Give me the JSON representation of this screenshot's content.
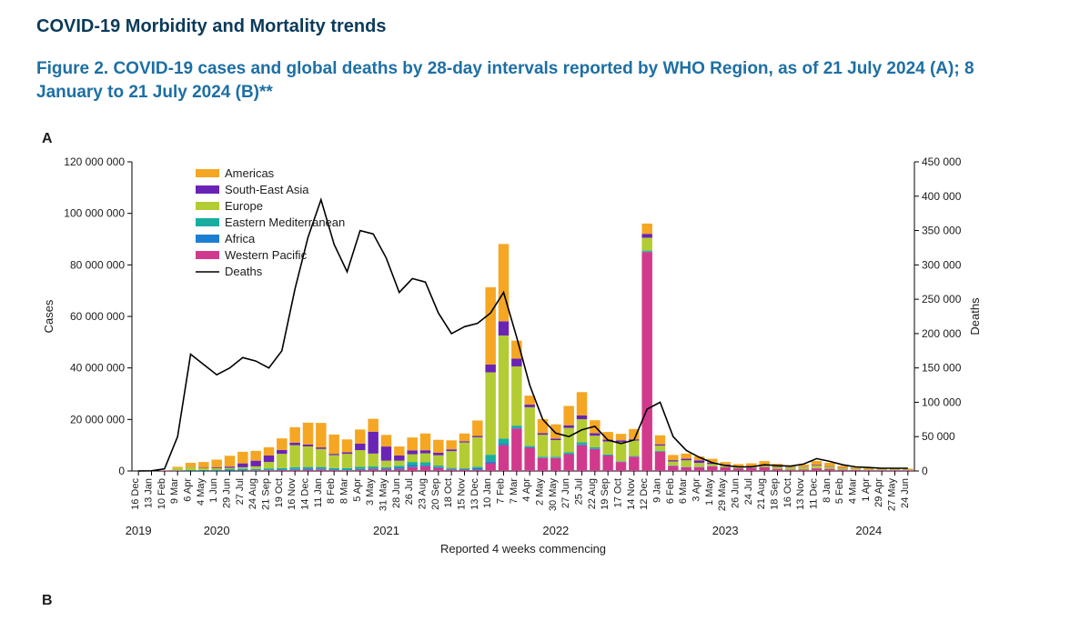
{
  "titles": {
    "main": "COVID-19 Morbidity and Mortality trends",
    "figure": "Figure 2. COVID-19 cases and global deaths by 28-day intervals reported by WHO Region, as of 21 July 2024 (A); 8 January to 21 July 2024 (B)**",
    "panelA": "A",
    "panelB": "B",
    "xaxis": "Reported 4 weeks commencing",
    "yleft": "Cases",
    "yright": "Deaths"
  },
  "colors": {
    "americas": "#f5a623",
    "sea": "#6a24b5",
    "europe": "#b3cc33",
    "emro": "#17aea0",
    "africa": "#1b7fd1",
    "wpro": "#d13a8c",
    "deaths": "#000000",
    "text": "#1c1c1c",
    "title": "#0b3a5b",
    "subtitle": "#1d6fa5",
    "background": "#ffffff",
    "axis": "#000000"
  },
  "legend": {
    "order": [
      "americas",
      "sea",
      "europe",
      "emro",
      "africa",
      "wpro",
      "deaths"
    ],
    "labels": {
      "americas": "Americas",
      "sea": "South-East Asia",
      "europe": "Europe",
      "emro": "Eastern Mediterranean",
      "africa": "Africa",
      "wpro": "Western Pacific",
      "deaths": "Deaths"
    }
  },
  "chart": {
    "type": "stacked-bar-with-line-dual-axis",
    "yleft": {
      "min": 0,
      "max": 120000000,
      "step": 20000000,
      "ticks": [
        "0",
        "20 000 000",
        "40 000 000",
        "60 000 000",
        "80 000 000",
        "100 000 000",
        "120 000 000"
      ]
    },
    "yright": {
      "min": 0,
      "max": 450000,
      "step": 50000,
      "ticks": [
        "0",
        "50 000",
        "100 000",
        "150 000",
        "200 000",
        "250 000",
        "300 000",
        "350 000",
        "400 000",
        "450 000"
      ]
    },
    "bar_gap_ratio": 0.2,
    "year_marks": [
      {
        "label": "2019",
        "at": 0
      },
      {
        "label": "2020",
        "at": 6
      },
      {
        "label": "2021",
        "at": 19
      },
      {
        "label": "2022",
        "at": 32
      },
      {
        "label": "2023",
        "at": 45
      },
      {
        "label": "2024",
        "at": 56
      }
    ],
    "xlabels": [
      "16 Dec",
      "13 Jan",
      "10 Feb",
      "9 Mar",
      "6 Apr",
      "4 May",
      "1 Jun",
      "29 Jun",
      "27 Jul",
      "24 Aug",
      "21 Sep",
      "19 Oct",
      "16 Nov",
      "14 Dec",
      "11 Jan",
      "8 Feb",
      "8 Mar",
      "5 Apr",
      "3 May",
      "31 May",
      "28 Jun",
      "26 Jul",
      "23 Aug",
      "20 Sep",
      "18 Oct",
      "15 Nov",
      "13 Dec",
      "10 Jan",
      "7 Feb",
      "7 Mar",
      "4 Apr",
      "2 May",
      "30 May",
      "27 Jun",
      "25 Jul",
      "22 Aug",
      "19 Sep",
      "17 Oct",
      "14 Nov",
      "12 Dec",
      "9 Jan",
      "6 Feb",
      "6 Mar",
      "3 Apr",
      "1 May",
      "29 May",
      "26 Jun",
      "24 Jul",
      "21 Aug",
      "18 Sep",
      "16 Oct",
      "13 Nov",
      "11 Dec",
      "8 Jan",
      "5 Feb",
      "4 Mar",
      "1 Apr",
      "29 Apr",
      "27 May",
      "24 Jun"
    ],
    "periods": [
      {
        "b": {
          "africa": 0,
          "emro": 0,
          "europe": 0,
          "sea": 0,
          "americas": 0,
          "wpro": 0
        },
        "d": 100
      },
      {
        "b": {
          "africa": 0,
          "emro": 0,
          "europe": 0,
          "sea": 0,
          "americas": 0,
          "wpro": 0.03
        },
        "d": 200
      },
      {
        "b": {
          "africa": 0,
          "emro": 0.02,
          "europe": 0.05,
          "sea": 0.01,
          "americas": 0.02,
          "wpro": 0.2
        },
        "d": 3000
      },
      {
        "b": {
          "africa": 0.02,
          "emro": 0.1,
          "europe": 0.8,
          "sea": 0.02,
          "americas": 0.5,
          "wpro": 0.2
        },
        "d": 50000
      },
      {
        "b": {
          "africa": 0.05,
          "emro": 0.2,
          "europe": 1.2,
          "sea": 0.1,
          "americas": 1.5,
          "wpro": 0.1
        },
        "d": 170000
      },
      {
        "b": {
          "africa": 0.08,
          "emro": 0.25,
          "europe": 0.7,
          "sea": 0.2,
          "americas": 2.2,
          "wpro": 0.05
        },
        "d": 155000
      },
      {
        "b": {
          "africa": 0.15,
          "emro": 0.3,
          "europe": 0.6,
          "sea": 0.3,
          "americas": 3.0,
          "wpro": 0.05
        },
        "d": 140000
      },
      {
        "b": {
          "africa": 0.3,
          "emro": 0.35,
          "europe": 0.5,
          "sea": 0.5,
          "americas": 4.2,
          "wpro": 0.05
        },
        "d": 150000
      },
      {
        "b": {
          "africa": 0.4,
          "emro": 0.3,
          "europe": 0.6,
          "sea": 1.5,
          "americas": 4.5,
          "wpro": 0.15
        },
        "d": 165000
      },
      {
        "b": {
          "africa": 0.3,
          "emro": 0.3,
          "europe": 1.0,
          "sea": 2.2,
          "americas": 3.8,
          "wpro": 0.2
        },
        "d": 160000
      },
      {
        "b": {
          "africa": 0.3,
          "emro": 0.4,
          "europe": 2.5,
          "sea": 2.5,
          "americas": 3.2,
          "wpro": 0.3
        },
        "d": 150000
      },
      {
        "b": {
          "africa": 0.3,
          "emro": 0.5,
          "europe": 5.5,
          "sea": 1.5,
          "americas": 4.5,
          "wpro": 0.35
        },
        "d": 175000
      },
      {
        "b": {
          "africa": 0.35,
          "emro": 0.7,
          "europe": 8.5,
          "sea": 1.0,
          "americas": 6.0,
          "wpro": 0.45
        },
        "d": 265000
      },
      {
        "b": {
          "africa": 0.4,
          "emro": 0.6,
          "europe": 8.0,
          "sea": 0.7,
          "americas": 8.5,
          "wpro": 0.55
        },
        "d": 340000
      },
      {
        "b": {
          "africa": 0.35,
          "emro": 0.6,
          "europe": 7.0,
          "sea": 0.6,
          "americas": 9.5,
          "wpro": 0.6
        },
        "d": 395000
      },
      {
        "b": {
          "africa": 0.3,
          "emro": 0.5,
          "europe": 5.0,
          "sea": 0.5,
          "americas": 7.5,
          "wpro": 0.35
        },
        "d": 330000
      },
      {
        "b": {
          "africa": 0.25,
          "emro": 0.6,
          "europe": 5.5,
          "sea": 0.6,
          "americas": 5.0,
          "wpro": 0.3
        },
        "d": 290000
      },
      {
        "b": {
          "africa": 0.25,
          "emro": 0.8,
          "europe": 6.5,
          "sea": 2.5,
          "americas": 5.5,
          "wpro": 0.55
        },
        "d": 350000
      },
      {
        "b": {
          "africa": 0.25,
          "emro": 0.7,
          "europe": 5.0,
          "sea": 8.5,
          "americas": 5.0,
          "wpro": 0.8
        },
        "d": 345000
      },
      {
        "b": {
          "africa": 0.3,
          "emro": 0.5,
          "europe": 2.5,
          "sea": 5.5,
          "americas": 4.5,
          "wpro": 0.7
        },
        "d": 310000
      },
      {
        "b": {
          "africa": 0.6,
          "emro": 0.6,
          "europe": 2.0,
          "sea": 2.0,
          "americas": 3.5,
          "wpro": 0.8
        },
        "d": 260000
      },
      {
        "b": {
          "africa": 0.8,
          "emro": 1.2,
          "europe": 3.0,
          "sea": 1.5,
          "americas": 5.0,
          "wpro": 1.5
        },
        "d": 280000
      },
      {
        "b": {
          "africa": 0.55,
          "emro": 1.0,
          "europe": 3.5,
          "sea": 1.2,
          "americas": 6.5,
          "wpro": 1.8
        },
        "d": 275000
      },
      {
        "b": {
          "africa": 0.3,
          "emro": 0.6,
          "europe": 4.0,
          "sea": 1.0,
          "americas": 5.0,
          "wpro": 1.2
        },
        "d": 230000
      },
      {
        "b": {
          "africa": 0.2,
          "emro": 0.4,
          "europe": 6.5,
          "sea": 0.7,
          "americas": 3.5,
          "wpro": 0.6
        },
        "d": 200000
      },
      {
        "b": {
          "africa": 0.25,
          "emro": 0.3,
          "europe": 10.0,
          "sea": 0.5,
          "americas": 3.0,
          "wpro": 0.5
        },
        "d": 210000
      },
      {
        "b": {
          "africa": 0.6,
          "emro": 0.5,
          "europe": 11.5,
          "sea": 0.5,
          "americas": 6.0,
          "wpro": 0.5
        },
        "d": 215000
      },
      {
        "b": {
          "africa": 0.8,
          "emro": 2.5,
          "europe": 32.0,
          "sea": 3.0,
          "americas": 30.0,
          "wpro": 3.0
        },
        "d": 230000
      },
      {
        "b": {
          "africa": 0.6,
          "emro": 2.0,
          "europe": 40.0,
          "sea": 5.5,
          "americas": 30.0,
          "wpro": 10.0
        },
        "d": 260000
      },
      {
        "b": {
          "africa": 0.3,
          "emro": 0.8,
          "europe": 23.0,
          "sea": 3.0,
          "americas": 7.0,
          "wpro": 16.5
        },
        "d": 195000
      },
      {
        "b": {
          "africa": 0.25,
          "emro": 0.5,
          "europe": 15.0,
          "sea": 1.0,
          "americas": 3.5,
          "wpro": 9.0
        },
        "d": 125000
      },
      {
        "b": {
          "africa": 0.25,
          "emro": 0.3,
          "europe": 8.5,
          "sea": 0.6,
          "americas": 5.5,
          "wpro": 5.0
        },
        "d": 75000
      },
      {
        "b": {
          "africa": 0.2,
          "emro": 0.3,
          "europe": 6.5,
          "sea": 0.6,
          "americas": 5.5,
          "wpro": 5.0
        },
        "d": 55000
      },
      {
        "b": {
          "africa": 0.25,
          "emro": 0.5,
          "europe": 9.5,
          "sea": 1.0,
          "americas": 7.5,
          "wpro": 6.5
        },
        "d": 50000
      },
      {
        "b": {
          "africa": 0.3,
          "emro": 0.8,
          "europe": 9.0,
          "sea": 1.5,
          "americas": 9.0,
          "wpro": 10.0
        },
        "d": 60000
      },
      {
        "b": {
          "africa": 0.2,
          "emro": 0.5,
          "europe": 4.5,
          "sea": 1.0,
          "americas": 5.0,
          "wpro": 8.5
        },
        "d": 65000
      },
      {
        "b": {
          "africa": 0.15,
          "emro": 0.3,
          "europe": 5.0,
          "sea": 0.7,
          "americas": 3.0,
          "wpro": 6.0
        },
        "d": 45000
      },
      {
        "b": {
          "africa": 0.1,
          "emro": 0.2,
          "europe": 7.5,
          "sea": 0.6,
          "americas": 2.5,
          "wpro": 3.5
        },
        "d": 40000
      },
      {
        "b": {
          "africa": 0.1,
          "emro": 0.2,
          "europe": 6.0,
          "sea": 0.5,
          "americas": 4.0,
          "wpro": 5.5
        },
        "d": 45000
      },
      {
        "b": {
          "africa": 0.15,
          "emro": 0.4,
          "europe": 5.0,
          "sea": 1.5,
          "americas": 4.0,
          "wpro": 85.0
        },
        "d": 90000
      },
      {
        "b": {
          "africa": 0.1,
          "emro": 0.25,
          "europe": 2.0,
          "sea": 0.5,
          "americas": 3.5,
          "wpro": 7.5
        },
        "d": 100000
      },
      {
        "b": {
          "africa": 0.05,
          "emro": 0.15,
          "europe": 1.5,
          "sea": 0.5,
          "americas": 2.0,
          "wpro": 2.0
        },
        "d": 50000
      },
      {
        "b": {
          "africa": 0.05,
          "emro": 0.1,
          "europe": 2.5,
          "sea": 0.6,
          "americas": 2.0,
          "wpro": 1.5
        },
        "d": 30000
      },
      {
        "b": {
          "africa": 0.05,
          "emro": 0.1,
          "europe": 1.5,
          "sea": 1.0,
          "americas": 1.5,
          "wpro": 1.5
        },
        "d": 20000
      },
      {
        "b": {
          "africa": 0.03,
          "emro": 0.08,
          "europe": 0.8,
          "sea": 0.5,
          "americas": 1.5,
          "wpro": 1.8
        },
        "d": 12000
      },
      {
        "b": {
          "africa": 0.02,
          "emro": 0.06,
          "europe": 0.6,
          "sea": 0.3,
          "americas": 1.0,
          "wpro": 1.5
        },
        "d": 8000
      },
      {
        "b": {
          "africa": 0.02,
          "emro": 0.05,
          "europe": 0.5,
          "sea": 0.3,
          "americas": 0.8,
          "wpro": 1.0
        },
        "d": 6000
      },
      {
        "b": {
          "africa": 0.02,
          "emro": 0.05,
          "europe": 0.4,
          "sea": 0.3,
          "americas": 1.0,
          "wpro": 1.2
        },
        "d": 6000
      },
      {
        "b": {
          "africa": 0.02,
          "emro": 0.06,
          "europe": 0.5,
          "sea": 0.25,
          "americas": 1.5,
          "wpro": 1.5
        },
        "d": 9000
      },
      {
        "b": {
          "africa": 0.02,
          "emro": 0.05,
          "europe": 0.7,
          "sea": 0.2,
          "americas": 1.0,
          "wpro": 0.8
        },
        "d": 8000
      },
      {
        "b": {
          "africa": 0.01,
          "emro": 0.04,
          "europe": 0.8,
          "sea": 0.15,
          "americas": 0.7,
          "wpro": 0.5
        },
        "d": 7000
      },
      {
        "b": {
          "africa": 0.01,
          "emro": 0.04,
          "europe": 0.9,
          "sea": 0.15,
          "americas": 0.8,
          "wpro": 0.6
        },
        "d": 10000
      },
      {
        "b": {
          "africa": 0.02,
          "emro": 0.06,
          "europe": 1.0,
          "sea": 0.3,
          "americas": 1.5,
          "wpro": 1.0
        },
        "d": 18000
      },
      {
        "b": {
          "africa": 0.02,
          "emro": 0.05,
          "europe": 0.8,
          "sea": 0.2,
          "americas": 1.3,
          "wpro": 0.8
        },
        "d": 14000
      },
      {
        "b": {
          "africa": 0.01,
          "emro": 0.04,
          "europe": 0.5,
          "sea": 0.15,
          "americas": 0.8,
          "wpro": 0.5
        },
        "d": 9000
      },
      {
        "b": {
          "africa": 0.01,
          "emro": 0.03,
          "europe": 0.4,
          "sea": 0.1,
          "americas": 0.5,
          "wpro": 0.4
        },
        "d": 6000
      },
      {
        "b": {
          "africa": 0.01,
          "emro": 0.03,
          "europe": 0.3,
          "sea": 0.1,
          "americas": 0.4,
          "wpro": 0.3
        },
        "d": 5000
      },
      {
        "b": {
          "africa": 0.01,
          "emro": 0.03,
          "europe": 0.2,
          "sea": 0.08,
          "americas": 0.3,
          "wpro": 0.3
        },
        "d": 4000
      },
      {
        "b": {
          "africa": 0.01,
          "emro": 0.03,
          "europe": 0.2,
          "sea": 0.08,
          "americas": 0.3,
          "wpro": 0.3
        },
        "d": 4000
      },
      {
        "b": {
          "africa": 0.01,
          "emro": 0.03,
          "europe": 0.2,
          "sea": 0.08,
          "americas": 0.3,
          "wpro": 0.3
        },
        "d": 4000
      }
    ],
    "stack_order": [
      "wpro",
      "africa",
      "emro",
      "europe",
      "sea",
      "americas"
    ]
  }
}
